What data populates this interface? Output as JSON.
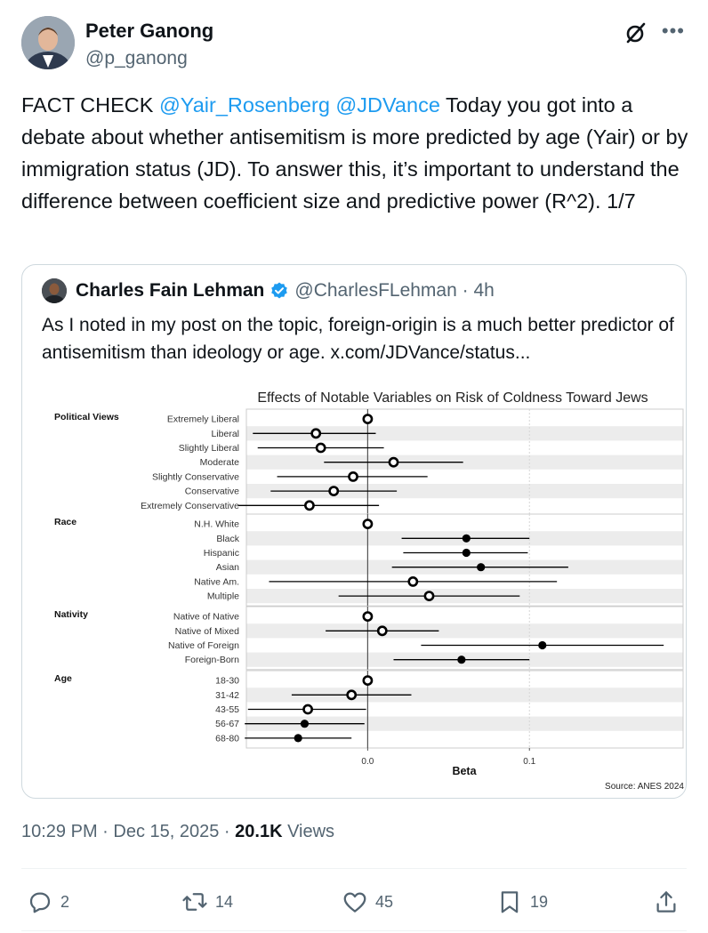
{
  "author": {
    "name": "Peter Ganong",
    "handle": "@p_ganong"
  },
  "tweet": {
    "prefix": "FACT CHECK ",
    "mention1": "@Yair_Rosenberg",
    "space": " ",
    "mention2": "@JDVance",
    "body": " Today you got into a debate about whether antisemitism is more predicted by age (Yair) or by immigration status (JD). To answer this, it’s important to understand the difference between coefficient size and predictive power (R^2). 1/7"
  },
  "quote": {
    "name": "Charles Fain Lehman",
    "handle": "@CharlesFLehman · 4h",
    "text": "As I noted in my post on the topic, foreign-origin is a much better predictor of antisemitism than ideology or age.  x.com/JDVance/status..."
  },
  "chart_data": {
    "type": "scatter",
    "title": "Effects of Notable Variables on Risk of Coldness Toward Jews",
    "xlabel": "Beta",
    "source": "Source: ANES 2024",
    "xlim": [
      -0.075,
      0.195
    ],
    "xticks": [
      0.0,
      0.1
    ],
    "xtick_labels": [
      "0.0",
      "0.1"
    ],
    "groups": [
      {
        "name": "Political Views",
        "items": [
          {
            "label": "Extremely Liberal",
            "est": 0.0,
            "lo": 0.0,
            "hi": 0.0,
            "ref": true
          },
          {
            "label": "Liberal",
            "est": -0.032,
            "lo": -0.071,
            "hi": 0.005,
            "ref": true
          },
          {
            "label": "Slightly Liberal",
            "est": -0.029,
            "lo": -0.068,
            "hi": 0.01,
            "ref": true
          },
          {
            "label": "Moderate",
            "est": 0.016,
            "lo": -0.027,
            "hi": 0.059,
            "ref": true
          },
          {
            "label": "Slightly Conservative",
            "est": -0.009,
            "lo": -0.056,
            "hi": 0.037,
            "ref": true
          },
          {
            "label": "Conservative",
            "est": -0.021,
            "lo": -0.06,
            "hi": 0.018,
            "ref": true
          },
          {
            "label": "Extremely Conservative",
            "est": -0.036,
            "lo": -0.08,
            "hi": 0.007,
            "ref": true
          }
        ]
      },
      {
        "name": "Race",
        "items": [
          {
            "label": "N.H. White",
            "est": 0.0,
            "lo": 0.0,
            "hi": 0.0,
            "ref": true
          },
          {
            "label": "Black",
            "est": 0.061,
            "lo": 0.021,
            "hi": 0.1,
            "ref": false
          },
          {
            "label": "Hispanic",
            "est": 0.061,
            "lo": 0.022,
            "hi": 0.099,
            "ref": false
          },
          {
            "label": "Asian",
            "est": 0.07,
            "lo": 0.015,
            "hi": 0.124,
            "ref": false
          },
          {
            "label": "Native Am.",
            "est": 0.028,
            "lo": -0.061,
            "hi": 0.117,
            "ref": true
          },
          {
            "label": "Multiple",
            "est": 0.038,
            "lo": -0.018,
            "hi": 0.094,
            "ref": true
          }
        ]
      },
      {
        "name": "Nativity",
        "items": [
          {
            "label": "Native of Native",
            "est": 0.0,
            "lo": 0.0,
            "hi": 0.0,
            "ref": true
          },
          {
            "label": "Native of Mixed",
            "est": 0.009,
            "lo": -0.026,
            "hi": 0.044,
            "ref": true
          },
          {
            "label": "Native of Foreign",
            "est": 0.108,
            "lo": 0.033,
            "hi": 0.183,
            "ref": false
          },
          {
            "label": "Foreign-Born",
            "est": 0.058,
            "lo": 0.016,
            "hi": 0.1,
            "ref": false
          }
        ]
      },
      {
        "name": "Age",
        "items": [
          {
            "label": "18-30",
            "est": 0.0,
            "lo": 0.0,
            "hi": 0.0,
            "ref": true
          },
          {
            "label": "31-42",
            "est": -0.01,
            "lo": -0.047,
            "hi": 0.027,
            "ref": true
          },
          {
            "label": "43-55",
            "est": -0.037,
            "lo": -0.074,
            "hi": -0.001,
            "ref": true
          },
          {
            "label": "56-67",
            "est": -0.039,
            "lo": -0.076,
            "hi": -0.002,
            "ref": false
          },
          {
            "label": "68-80",
            "est": -0.043,
            "lo": -0.076,
            "hi": -0.01,
            "ref": false
          }
        ]
      }
    ],
    "colors": {
      "line": "#000000",
      "stripe": "#ececec",
      "panel_border": "#cccccc",
      "zero_line": "#555555"
    }
  },
  "meta": {
    "time": "10:29 PM · Dec 15, 2025 · ",
    "views_count": "20.1K",
    "views_label": " Views"
  },
  "actions": {
    "replies": "2",
    "reposts": "14",
    "likes": "45",
    "bookmarks": "19"
  },
  "colors": {
    "accent": "#1d9bf0",
    "secondary_text": "#536471",
    "verified": "#1d9bf0"
  }
}
